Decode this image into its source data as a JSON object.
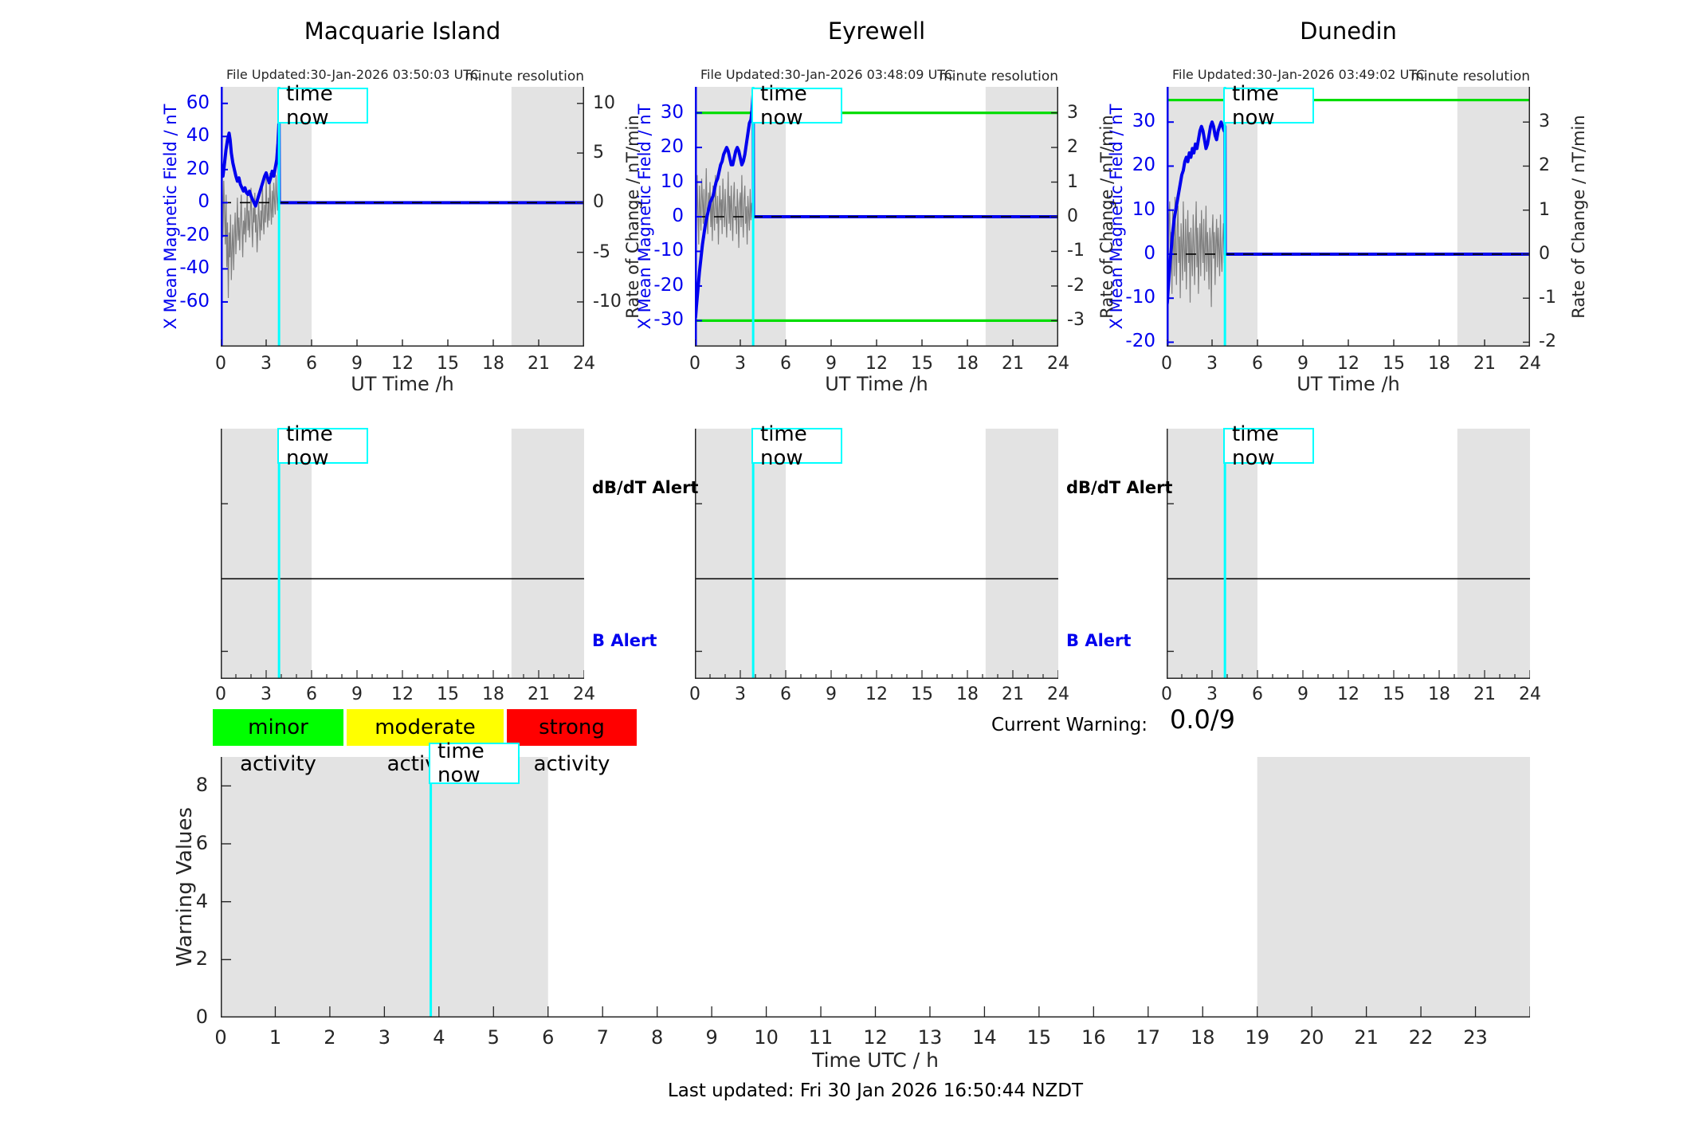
{
  "time_now": {
    "label": "time now",
    "hour": 3.85
  },
  "colors": {
    "blue": "#0000ee",
    "noise_gray": "#808080",
    "threshold_green": "#00dd00",
    "cyan": "#00ffff",
    "shade": "#e3e3e3",
    "axis": "#262626"
  },
  "current_warning": {
    "label": "Current Warning:",
    "value": "0.0/9"
  },
  "legend": [
    {
      "label": "minor activity",
      "color": "#00ff00"
    },
    {
      "label": "moderate activity",
      "color": "#ffff00"
    },
    {
      "label": "strong activity",
      "color": "#ff0000"
    }
  ],
  "footer": {
    "last_updated": "Last updated: Fri 30 Jan 2026 16:50:44 NZDT"
  },
  "chart_data": [
    {
      "id": "macquarie-island",
      "type": "station",
      "title": "Macquarie Island",
      "file_updated": "File Updated:30-Jan-2026 03:50:03 UTC",
      "resolution_note": "minute resolution",
      "xlabel": "UT Time /h",
      "xlim": [
        0,
        24
      ],
      "xticks": [
        0,
        3,
        6,
        9,
        12,
        15,
        18,
        21,
        24
      ],
      "ylabel_left": "X Mean Magnetic Field / nT",
      "ylabel_right": "Rate of Change / nT/min",
      "ylim": [
        -87,
        70
      ],
      "yticks_left": [
        60,
        40,
        20,
        0,
        -20,
        -40,
        -60
      ],
      "yticks_right": [
        10,
        5,
        0,
        -5,
        -10
      ],
      "right_to_left_factor": 6,
      "shade": [
        [
          0,
          6
        ],
        [
          19.2,
          24
        ]
      ],
      "green_thresholds": [],
      "time_now_hour": 3.85,
      "series": {
        "mean_field": {
          "x": [
            0,
            0.08,
            0.15,
            0.25,
            0.35,
            0.45,
            0.55,
            0.62,
            0.7,
            0.8,
            0.9,
            1.0,
            1.1,
            1.2,
            1.3,
            1.4,
            1.5,
            1.6,
            1.7,
            1.8,
            1.9,
            2.0,
            2.1,
            2.2,
            2.3,
            2.4,
            2.5,
            2.6,
            2.7,
            2.8,
            2.9,
            3.0,
            3.1,
            3.2,
            3.3,
            3.4,
            3.5,
            3.6,
            3.7,
            3.78,
            3.83,
            3.85,
            3.87,
            24
          ],
          "y": [
            14,
            18,
            16,
            24,
            32,
            38,
            42,
            38,
            30,
            24,
            20,
            16,
            13,
            15,
            11,
            9,
            7,
            9,
            6,
            5,
            7,
            4,
            2,
            0,
            -2,
            1,
            4,
            7,
            10,
            13,
            16,
            18,
            15,
            12,
            15,
            19,
            16,
            21,
            26,
            36,
            46,
            50,
            0,
            0
          ]
        },
        "rate_noise": {
          "t0": 0,
          "dt": 0.05,
          "values": [
            0.5,
            -2.1,
            3.5,
            -3.5,
            2.2,
            -1.0,
            -4.2,
            0.8,
            -6.5,
            -2.0,
            -9.6,
            -3.0,
            -5.5,
            -1.2,
            -7.8,
            -4.5,
            -2.2,
            -6.8,
            -3.5,
            -1.0,
            -5.2,
            -2.8,
            0.5,
            -3.8,
            -1.5,
            -4.8,
            -2.0,
            0.8,
            -2.5,
            -5.5,
            -1.8,
            -3.2,
            -0.5,
            -4.0,
            -1.5,
            1.2,
            -2.8,
            -0.8,
            -3.5,
            -1.0,
            1.5,
            -2.2,
            -4.5,
            -0.5,
            -2.0,
            1.0,
            -3.0,
            -1.2,
            -5.0,
            -2.5,
            0.2,
            -1.8,
            -3.8,
            -0.8,
            -2.8,
            1.8,
            -1.5,
            -3.2,
            -0.2,
            -2.0,
            2.5,
            -1.0,
            -2.5,
            0.5,
            -1.8,
            3.0,
            -0.5,
            -2.2,
            1.2,
            -1.5,
            2.0,
            0.2,
            -1.2,
            2.8,
            0.8,
            -0.8,
            1.5
          ]
        }
      }
    },
    {
      "id": "eyrewell",
      "type": "station",
      "title": "Eyrewell",
      "file_updated": "File Updated:30-Jan-2026 03:48:09 UTC",
      "resolution_note": "minute resolution",
      "xlabel": "UT Time /h",
      "xlim": [
        0,
        24
      ],
      "xticks": [
        0,
        3,
        6,
        9,
        12,
        15,
        18,
        21,
        24
      ],
      "ylabel_left": "X Mean Magnetic Field / nT",
      "ylabel_right": "Rate of Change / nT/min",
      "ylim": [
        -37.5,
        37.5
      ],
      "yticks_left": [
        30,
        20,
        10,
        0,
        -10,
        -20,
        -30
      ],
      "yticks_right": [
        3,
        2,
        1,
        0,
        -1,
        -2,
        -3
      ],
      "right_to_left_factor": 10,
      "shade": [
        [
          0,
          6
        ],
        [
          19.2,
          24
        ]
      ],
      "green_thresholds": [
        30,
        -30
      ],
      "time_now_hour": 3.85,
      "series": {
        "mean_field": {
          "x": [
            0,
            0.05,
            0.1,
            0.2,
            0.3,
            0.4,
            0.5,
            0.6,
            0.7,
            0.8,
            0.9,
            1.0,
            1.1,
            1.2,
            1.3,
            1.4,
            1.5,
            1.6,
            1.7,
            1.8,
            1.9,
            2.0,
            2.1,
            2.2,
            2.3,
            2.4,
            2.5,
            2.6,
            2.7,
            2.8,
            2.9,
            3.0,
            3.1,
            3.2,
            3.3,
            3.4,
            3.5,
            3.6,
            3.7,
            3.78,
            3.85,
            3.87,
            24
          ],
          "y": [
            -28,
            -29,
            -26,
            -21,
            -16,
            -12,
            -8,
            -5,
            -2,
            0,
            2,
            4,
            5,
            6,
            8,
            10,
            11,
            13,
            15,
            16,
            18,
            19,
            20,
            19,
            17,
            15,
            15,
            17,
            19,
            20,
            19,
            17,
            15,
            16,
            18,
            21,
            24,
            27,
            28,
            31,
            36,
            0,
            0
          ]
        },
        "rate_noise": {
          "t0": 0,
          "dt": 0.05,
          "values": [
            0.3,
            1.9,
            -0.5,
            1.2,
            0.1,
            -0.8,
            0.9,
            0.2,
            -0.4,
            1.1,
            0.5,
            -0.2,
            0.8,
            -0.6,
            0.3,
            1.4,
            0.0,
            -0.5,
            0.7,
            0.2,
            1.0,
            -0.3,
            0.5,
            -0.7,
            0.9,
            0.1,
            -0.4,
            1.2,
            0.4,
            -0.2,
            0.6,
            -0.8,
            0.2,
            0.9,
            -0.1,
            0.5,
            -0.5,
            1.1,
            0.3,
            -0.3,
            0.8,
            0.0,
            -0.6,
            0.4,
            1.3,
            -0.2,
            0.6,
            -0.4,
            0.9,
            0.1,
            -0.7,
            0.5,
            1.0,
            -0.1,
            0.3,
            -0.5,
            0.8,
            0.2,
            -0.9,
            0.4,
            0.7,
            -0.3,
            1.2,
            0.0,
            -0.6,
            0.5,
            0.9,
            -0.2,
            0.3,
            -0.8,
            0.6,
            0.1,
            -0.4,
            0.8,
            -0.1,
            0.4,
            0.2
          ]
        }
      }
    },
    {
      "id": "dunedin",
      "type": "station",
      "title": "Dunedin",
      "file_updated": "File Updated:30-Jan-2026 03:49:02 UTC",
      "resolution_note": "minute resolution",
      "xlabel": "UT Time /h",
      "xlim": [
        0,
        24
      ],
      "xticks": [
        0,
        3,
        6,
        9,
        12,
        15,
        18,
        21,
        24
      ],
      "ylabel_left": "X Mean Magnetic Field / nT",
      "ylabel_right": "Rate of Change / nT/min",
      "ylim": [
        -21,
        38
      ],
      "yticks_left": [
        30,
        20,
        10,
        0,
        -10,
        -20
      ],
      "yticks_right": [
        3,
        2,
        1,
        0,
        -1,
        -2
      ],
      "right_to_left_factor": 10,
      "shade": [
        [
          0,
          6
        ],
        [
          19.2,
          24
        ]
      ],
      "green_thresholds": [
        35
      ],
      "time_now_hour": 3.85,
      "series": {
        "mean_field": {
          "x": [
            0,
            0.05,
            0.1,
            0.2,
            0.3,
            0.4,
            0.5,
            0.6,
            0.7,
            0.8,
            0.9,
            1.0,
            1.1,
            1.2,
            1.3,
            1.4,
            1.5,
            1.6,
            1.7,
            1.8,
            1.9,
            2.0,
            2.1,
            2.2,
            2.3,
            2.4,
            2.5,
            2.6,
            2.7,
            2.8,
            2.9,
            3.0,
            3.1,
            3.2,
            3.3,
            3.4,
            3.5,
            3.6,
            3.7,
            3.8,
            3.85,
            3.87,
            24
          ],
          "y": [
            -12,
            -11,
            -8,
            -3,
            1,
            5,
            8,
            10,
            12,
            14,
            16,
            18,
            19,
            21,
            22,
            21,
            23,
            22,
            24,
            23,
            25,
            24,
            26,
            28,
            29,
            28,
            26,
            24,
            25,
            27,
            29,
            30,
            29,
            27,
            26,
            28,
            29,
            30,
            29,
            28,
            29,
            0,
            0
          ]
        },
        "rate_noise": {
          "t0": 0,
          "dt": 0.05,
          "values": [
            0.2,
            1.4,
            -0.6,
            0.8,
            1.2,
            -0.3,
            0.5,
            -0.9,
            1.0,
            0.3,
            -0.5,
            1.3,
            0.0,
            -0.7,
            0.6,
            1.1,
            -0.2,
            0.4,
            -1.0,
            0.7,
            0.2,
            -0.6,
            1.2,
            0.1,
            -0.4,
            0.8,
            -0.8,
            0.3,
            1.0,
            -0.2,
            0.5,
            -1.1,
            0.6,
            0.0,
            -0.5,
            0.9,
            0.2,
            -0.7,
            0.4,
            1.2,
            -0.3,
            0.6,
            -0.9,
            0.1,
            0.7,
            -0.5,
            1.0,
            0.3,
            -0.2,
            0.8,
            -0.6,
            0.2,
            1.1,
            -0.4,
            0.5,
            0.0,
            -0.8,
            0.6,
            0.3,
            -1.2,
            0.4,
            0.9,
            -0.1,
            0.5,
            -0.7,
            0.2,
            0.8,
            -0.3,
            0.6,
            0.1,
            -0.5,
            0.9,
            0.0,
            -0.4,
            0.3,
            0.7,
            -0.2
          ]
        }
      }
    },
    {
      "id": "alert-macquarie",
      "type": "alert",
      "station": "Macquarie Island",
      "labels": {
        "db_dt": "dB/dT Alert",
        "b": "B Alert"
      },
      "show_side_labels": true,
      "xlim": [
        0,
        24
      ],
      "xticks": [
        0,
        3,
        6,
        9,
        12,
        15,
        18,
        21,
        24
      ],
      "minor_tick_step": 1,
      "shade": [
        [
          0,
          6
        ],
        [
          19.2,
          24
        ]
      ],
      "time_now_hour": 3.85
    },
    {
      "id": "alert-eyrewell",
      "type": "alert",
      "station": "Eyrewell",
      "labels": {
        "db_dt": "dB/dT Alert",
        "b": "B Alert"
      },
      "show_side_labels": true,
      "xlim": [
        0,
        24
      ],
      "xticks": [
        0,
        3,
        6,
        9,
        12,
        15,
        18,
        21,
        24
      ],
      "minor_tick_step": 1,
      "shade": [
        [
          0,
          6
        ],
        [
          19.2,
          24
        ]
      ],
      "time_now_hour": 3.85
    },
    {
      "id": "alert-dunedin",
      "type": "alert",
      "station": "Dunedin",
      "labels": {
        "db_dt": "dB/dT Alert",
        "b": "B Alert"
      },
      "show_side_labels": false,
      "xlim": [
        0,
        24
      ],
      "xticks": [
        0,
        3,
        6,
        9,
        12,
        15,
        18,
        21,
        24
      ],
      "minor_tick_step": 1,
      "shade": [
        [
          0,
          6
        ],
        [
          19.2,
          24
        ]
      ],
      "time_now_hour": 3.85
    },
    {
      "id": "warning-values",
      "type": "line",
      "ylabel": "Warning Values",
      "ylim": [
        0,
        9
      ],
      "yticks": [
        0,
        2,
        4,
        6,
        8
      ],
      "xlabel": "Time UTC / h",
      "xlim": [
        0,
        24
      ],
      "xticks": [
        0,
        1,
        2,
        3,
        4,
        5,
        6,
        7,
        8,
        9,
        10,
        11,
        12,
        13,
        14,
        15,
        16,
        17,
        18,
        19,
        20,
        21,
        22,
        23
      ],
      "shade": [
        [
          0,
          6
        ],
        [
          19,
          24
        ]
      ],
      "time_now_hour": 3.85,
      "series": []
    }
  ]
}
